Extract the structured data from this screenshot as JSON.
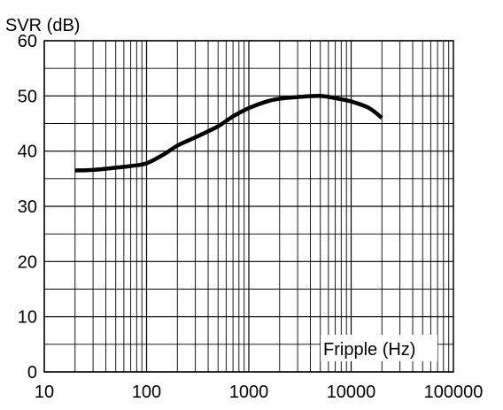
{
  "chart_data": {
    "type": "line",
    "title": "",
    "ylabel": "SVR (dB)",
    "xlabel": "Fripple (Hz)",
    "x_scale": "log",
    "xlim": [
      10,
      100000
    ],
    "ylim": [
      0,
      60
    ],
    "grid": true,
    "x_ticks": [
      10,
      100,
      1000,
      10000,
      100000
    ],
    "x_tick_labels": [
      "10",
      "100",
      "1000",
      "10000",
      "100000"
    ],
    "y_ticks": [
      0,
      10,
      20,
      30,
      40,
      50,
      60
    ],
    "y_tick_labels": [
      "0",
      "10",
      "20",
      "30",
      "40",
      "50",
      "60"
    ],
    "y_minor_step": 5,
    "series": [
      {
        "x": [
          20,
          30,
          50,
          70,
          100,
          150,
          200,
          300,
          500,
          700,
          1000,
          1500,
          2000,
          3000,
          5000,
          7000,
          10000,
          15000,
          20000
        ],
        "y": [
          36.5,
          36.6,
          37.0,
          37.3,
          37.8,
          39.5,
          41.0,
          42.5,
          44.5,
          46.3,
          47.8,
          49.0,
          49.5,
          49.8,
          50.0,
          49.6,
          49.0,
          47.8,
          46.0
        ]
      }
    ],
    "colors": {
      "line": "#000000",
      "grid": "#000000",
      "background": "#ffffff"
    }
  }
}
